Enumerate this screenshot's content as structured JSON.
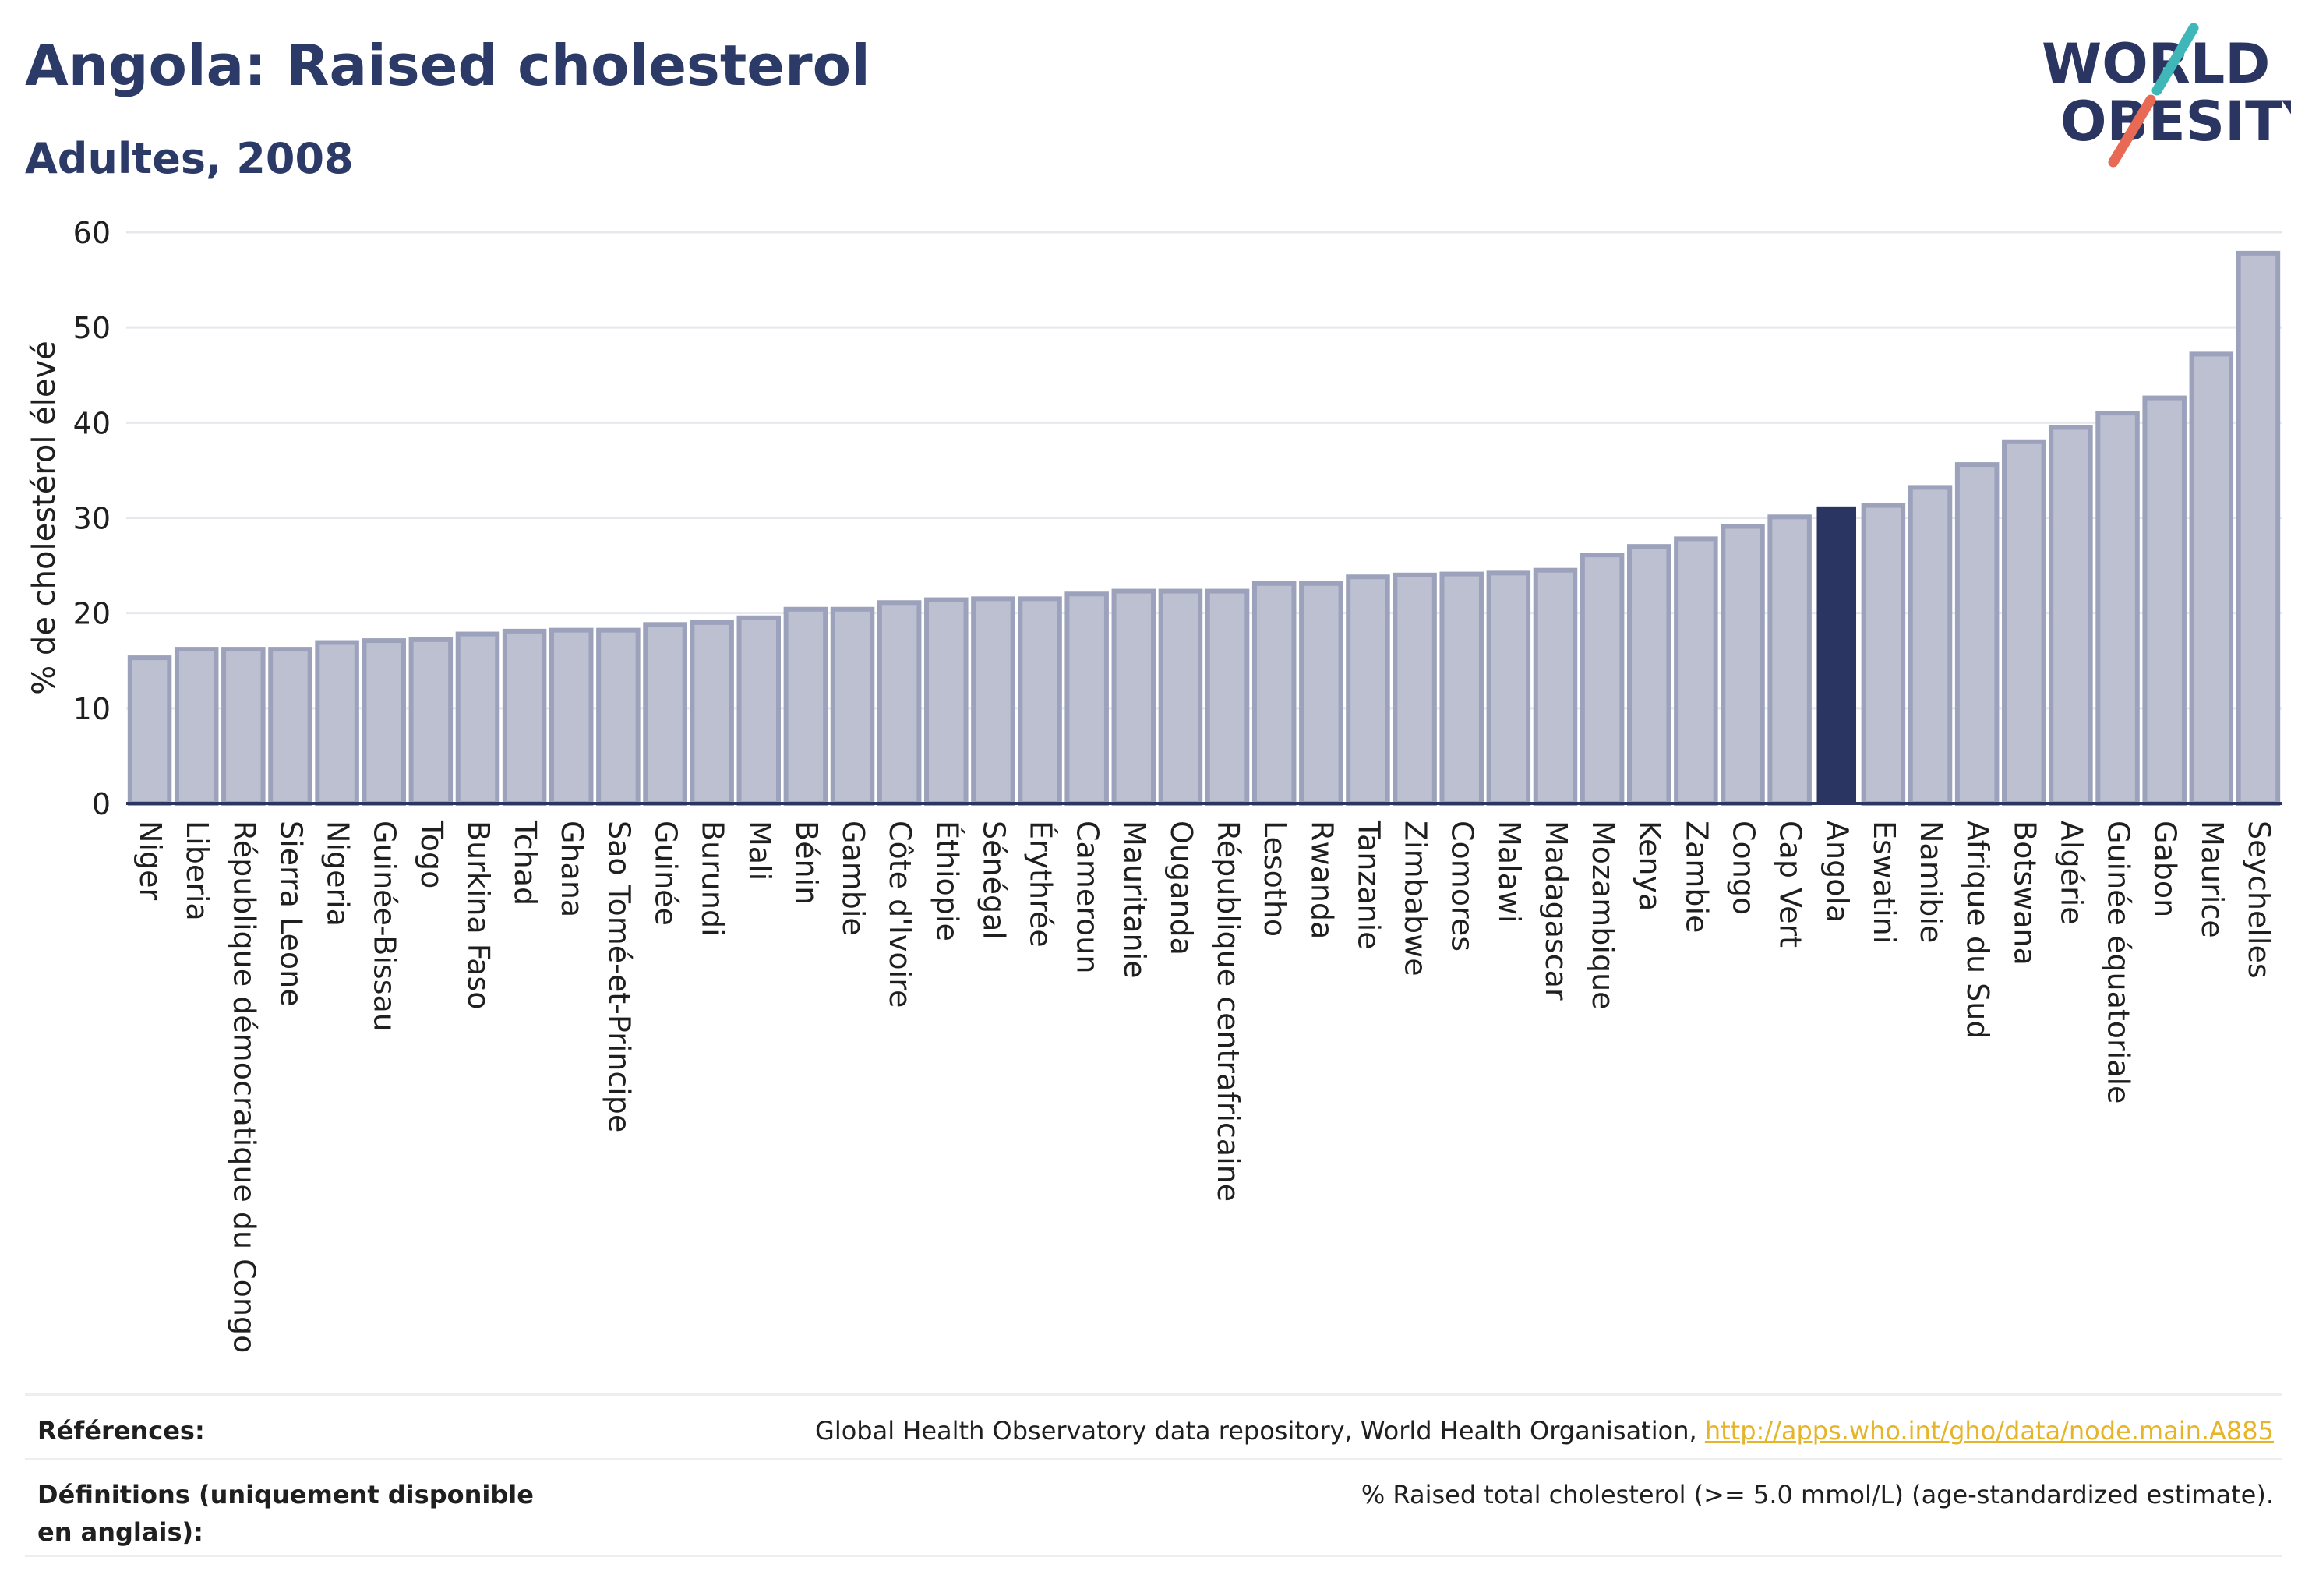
{
  "title": "Angola: Raised cholesterol",
  "subtitle": "Adultes, 2008",
  "logo": {
    "line1": "WORLD",
    "line2": "OBESITY"
  },
  "colors": {
    "bar": "#bcc0d0",
    "bar_stroke": "#9ca2bb",
    "highlight": "#2b3561",
    "grid": "#e6e8ee",
    "axis": "#2b3561"
  },
  "chart_data": {
    "type": "bar",
    "ylabel": "% de cholestérol élevé",
    "ylim": [
      0,
      60
    ],
    "yticks": [
      0,
      10,
      20,
      30,
      40,
      50,
      60
    ],
    "grid": true,
    "highlight": "Angola",
    "categories": [
      "Niger",
      "Liberia",
      "République démocratique du Congo",
      "Sierra Leone",
      "Nigeria",
      "Guinée-Bissau",
      "Togo",
      "Burkina Faso",
      "Tchad",
      "Ghana",
      "Sao Tomé-et-Principe",
      "Guinée",
      "Burundi",
      "Mali",
      "Bénin",
      "Gambie",
      "Côte d'Ivoire",
      "Éthiopie",
      "Sénégal",
      "Érythrée",
      "Cameroun",
      "Mauritanie",
      "Ouganda",
      "République centrafricaine",
      "Lesotho",
      "Rwanda",
      "Tanzanie",
      "Zimbabwe",
      "Comores",
      "Malawi",
      "Madagascar",
      "Mozambique",
      "Kenya",
      "Zambie",
      "Congo",
      "Cap Vert",
      "Angola",
      "Eswatini",
      "Namibie",
      "Afrique du Sud",
      "Botswana",
      "Algérie",
      "Guinée équatoriale",
      "Gabon",
      "Maurice",
      "Seychelles"
    ],
    "values": [
      15.3,
      16.2,
      16.2,
      16.2,
      16.9,
      17.1,
      17.2,
      17.8,
      18.1,
      18.2,
      18.2,
      18.8,
      19.0,
      19.5,
      20.4,
      20.4,
      21.1,
      21.4,
      21.5,
      21.5,
      22.0,
      22.3,
      22.3,
      22.3,
      23.1,
      23.1,
      23.8,
      24.0,
      24.1,
      24.2,
      24.5,
      26.1,
      27.0,
      27.8,
      29.1,
      30.1,
      31.2,
      31.3,
      33.2,
      35.6,
      38.0,
      39.5,
      41.0,
      42.6,
      47.2,
      57.8
    ]
  },
  "footer": {
    "references_label": "Références:",
    "references_text": "Global Health Observatory data repository, World Health Organisation,",
    "references_link": "http://apps.who.int/gho/data/node.main.A885",
    "definitions_label": "Définitions (uniquement disponible en anglais):",
    "definitions_text": "% Raised total cholesterol (>= 5.0 mmol/L) (age-standardized estimate)."
  }
}
